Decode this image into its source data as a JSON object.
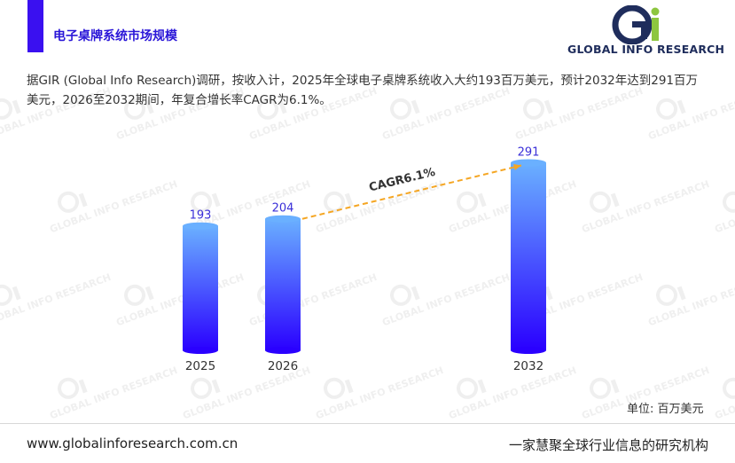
{
  "header": {
    "title": "电子桌牌系统市场规模",
    "logo_text": "GLOBAL INFO RESEARCH",
    "accent_color": "#3a10f0"
  },
  "description": "据GIR (Global Info Research)调研，按收入计，2025年全球电子桌牌系统收入大约193百万美元，预计2032年达到291百万美元，2026至2032期间，年复合增长率CAGR为6.1%。",
  "watermark_text": "GLOBAL INFO RESEARCH",
  "chart_data": {
    "type": "bar",
    "categories": [
      "2025",
      "2026",
      "2032"
    ],
    "values": [
      193,
      204,
      291
    ],
    "data_labels": [
      "193",
      "204",
      "291"
    ],
    "annotation": "CAGR6.1%",
    "unit_label": "单位: 百万美元",
    "bar_gradient": [
      "#6ab0ff",
      "#2a00ff"
    ],
    "label_color": "#3a2fd8",
    "arrow_color": "#f5a623"
  },
  "footer": {
    "website": "www.globalinforesearch.com.cn",
    "slogan": "一家慧聚全球行业信息的研究机构"
  }
}
